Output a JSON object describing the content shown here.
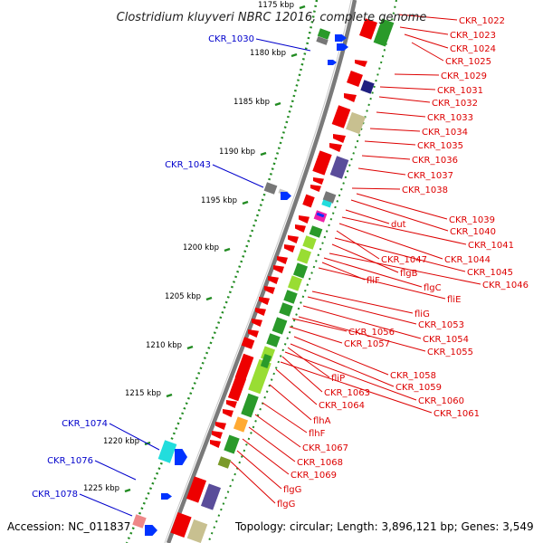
{
  "title": "Clostridium kluyveri NBRC 12016, complete genome",
  "accession": "Accession: NC_011837",
  "topology": "Topology: circular; Length: 3,896,121 bp; Genes: 3,549",
  "kbp_labels": [
    "1175 kbp",
    "1180 kbp",
    "1185 kbp",
    "1190 kbp",
    "1195 kbp",
    "1200 kbp",
    "1205 kbp",
    "1210 kbp",
    "1215 kbp",
    "1220 kbp",
    "1225 kbp"
  ],
  "left_labels": [
    "CKR_1030",
    "CKR_1043",
    "CKR_1074",
    "CKR_1076",
    "CKR_1078"
  ],
  "right_labels": [
    "CKR_1022",
    "CKR_1023",
    "CKR_1024",
    "CKR_1025",
    "CKR_1029",
    "CKR_1031",
    "CKR_1032",
    "CKR_1033",
    "CKR_1034",
    "CKR_1035",
    "CKR_1036",
    "CKR_1037",
    "CKR_1038",
    "CKR_1039",
    "CKR_1040",
    "dut",
    "CKR_1041",
    "CKR_1047",
    "CKR_1044",
    "CKR_1045",
    "flgB",
    "CKR_1046",
    "fliF",
    "flgC",
    "fliE",
    "fliG",
    "CKR_1053",
    "CKR_1056",
    "CKR_1054",
    "CKR_1057",
    "CKR_1055",
    "CKR_1058",
    "fliP",
    "CKR_1059",
    "CKR_1063",
    "CKR_1060",
    "CKR_1064",
    "CKR_1061",
    "flhA",
    "flhF",
    "CKR_1067",
    "CKR_1068",
    "CKR_1069",
    "flgG",
    "flgG"
  ],
  "colors": {
    "backbone": "#777777",
    "tick_green": "#228b22",
    "label_red": "#dd0000",
    "label_blue": "#0000cc",
    "gene_red": "#ee0000",
    "gene_green": "#2a9a2a",
    "gene_lime": "#99dd33",
    "gene_navy": "#202080",
    "gene_purple": "#5a4d9a",
    "gene_khaki": "#c8c090",
    "gene_gray": "#777777",
    "gene_cyan": "#22dddd",
    "gene_magenta": "#ee22aa",
    "gene_orange": "#ffaa33",
    "gene_olive": "#7a9a2a",
    "gene_blue": "#0033ff"
  }
}
